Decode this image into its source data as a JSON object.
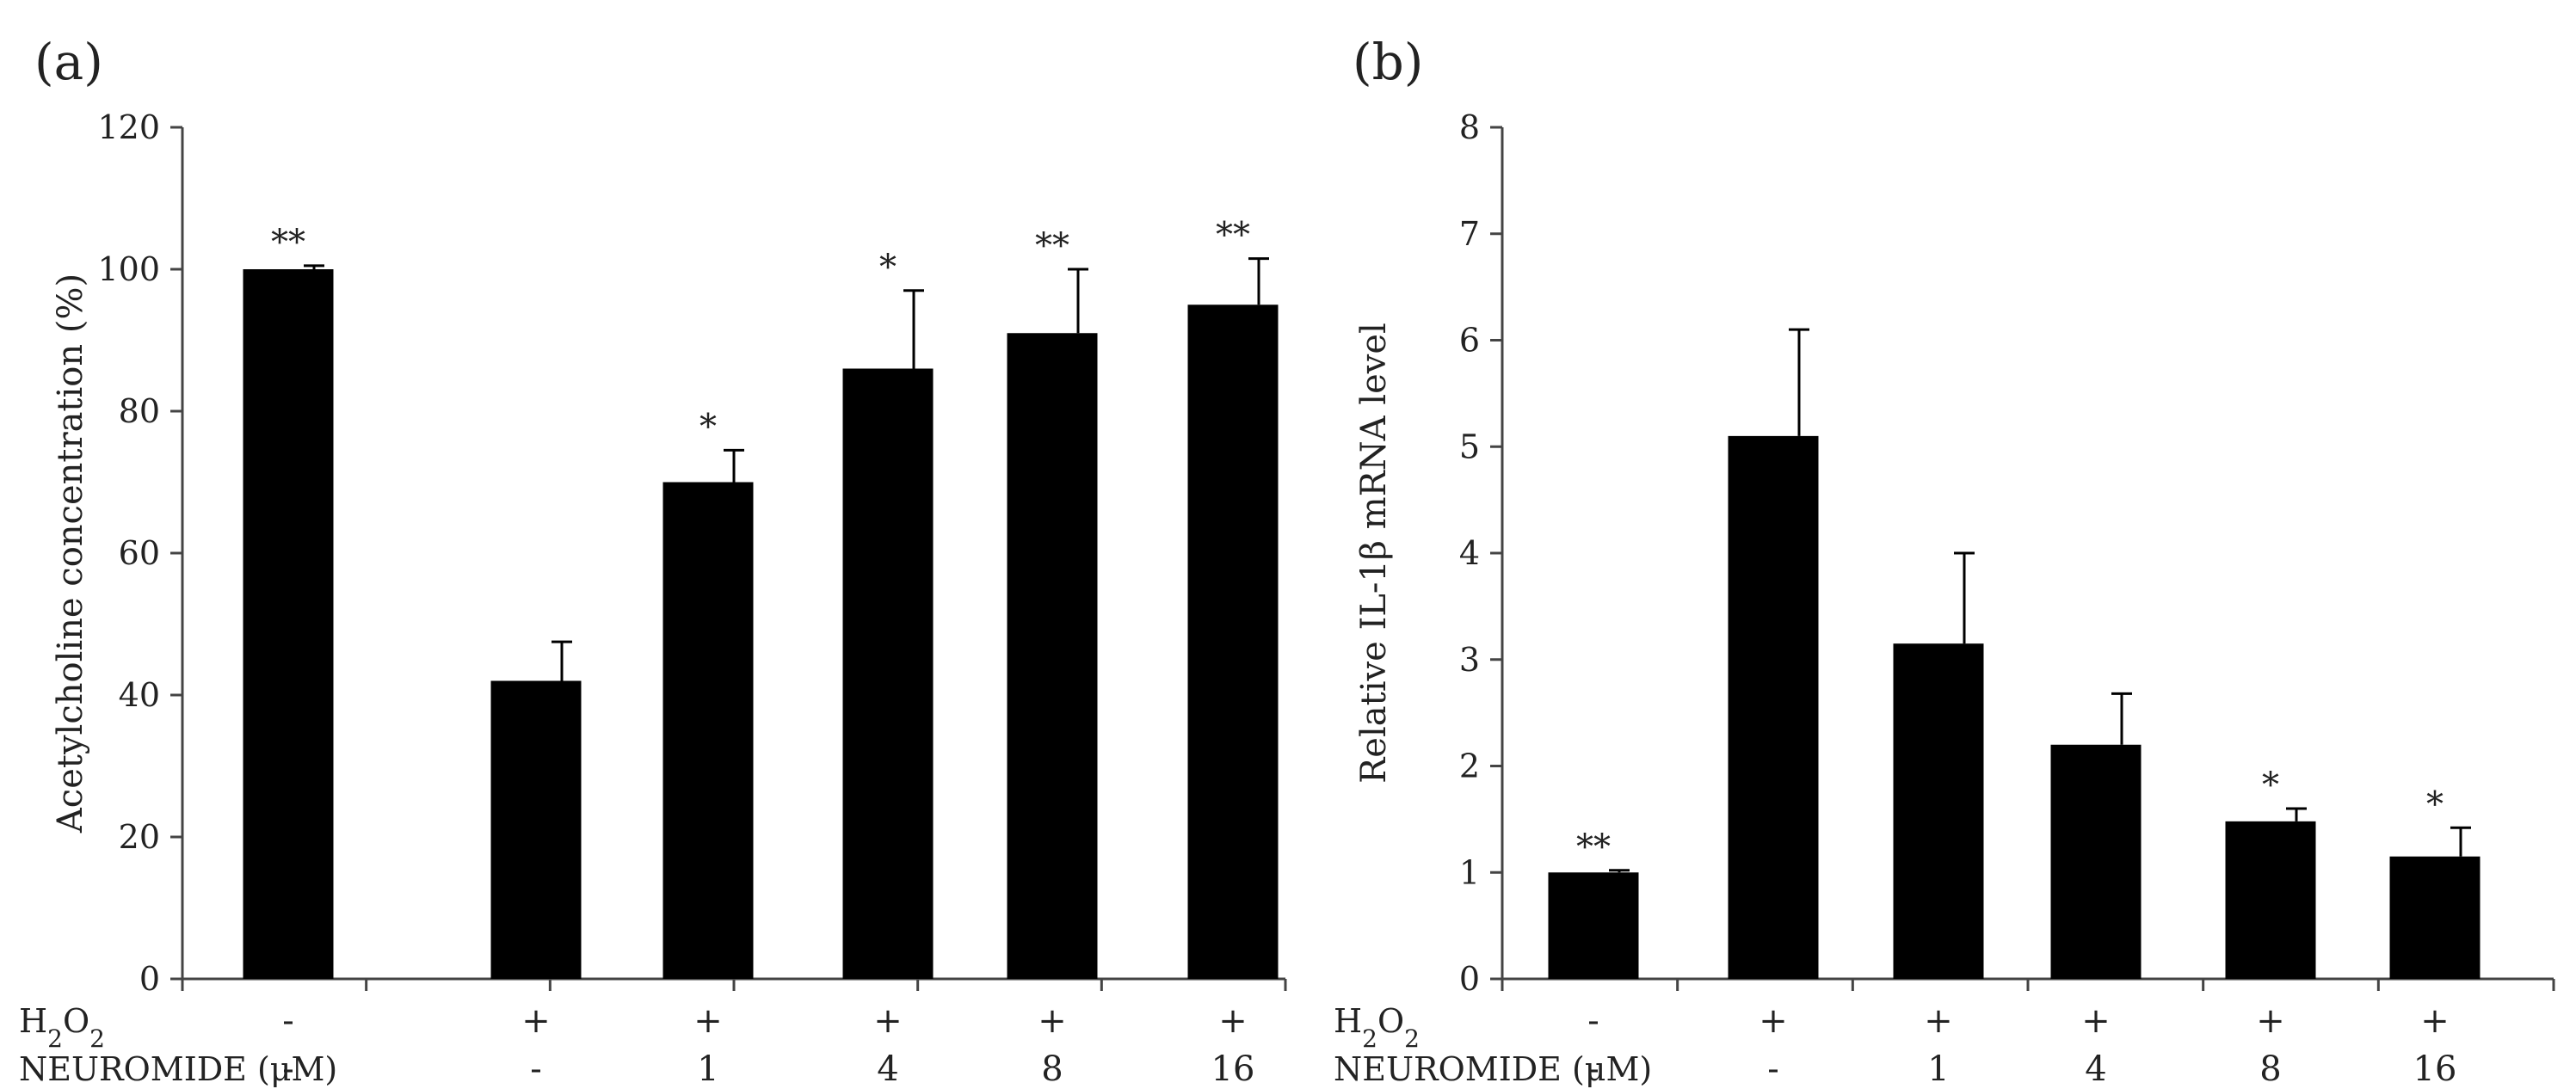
{
  "chart_data": [
    {
      "type": "bar",
      "panel_label": "(a)",
      "ylabel": "Acetylcholine concentration (%)",
      "ylim": [
        0,
        120
      ],
      "yticks": [
        0,
        20,
        40,
        60,
        80,
        100,
        120
      ],
      "grid": false,
      "legend": "none",
      "bar_color": "#000000",
      "row_labels": [
        "H2O2",
        "NEUROMIDE (μM)"
      ],
      "h2o2": [
        "-",
        "+",
        "+",
        "+",
        "+",
        "+"
      ],
      "neuromide": [
        "-",
        "-",
        "1",
        "4",
        "8",
        "16"
      ],
      "values": [
        100,
        42,
        70,
        86,
        91,
        95
      ],
      "errors": [
        0.5,
        5.5,
        4.5,
        11,
        9,
        6.5
      ],
      "significance": [
        "**",
        "",
        "*",
        "*",
        "**",
        "**"
      ]
    },
    {
      "type": "bar",
      "panel_label": "(b)",
      "ylabel": "Relative IL-1β mRNA level",
      "ylim": [
        0,
        8
      ],
      "yticks": [
        0,
        1,
        2,
        3,
        4,
        5,
        6,
        7,
        8
      ],
      "grid": false,
      "legend": "none",
      "bar_color": "#000000",
      "row_labels": [
        "H2O2",
        "NEUROMIDE (μM)"
      ],
      "h2o2": [
        "-",
        "+",
        "+",
        "+",
        "+",
        "+"
      ],
      "neuromide": [
        "-",
        "-",
        "1",
        "4",
        "8",
        "16"
      ],
      "values": [
        1.0,
        5.1,
        3.15,
        2.2,
        1.48,
        1.15
      ],
      "errors": [
        0.02,
        1.0,
        0.85,
        0.48,
        0.12,
        0.27
      ],
      "significance": [
        "**",
        "",
        "",
        "",
        "*",
        "*"
      ]
    }
  ]
}
